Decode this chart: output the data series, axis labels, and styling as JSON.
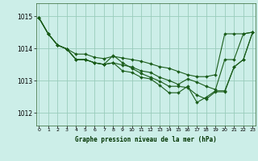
{
  "title": "Graphe pression niveau de la mer (hPa)",
  "bg_color": "#cceee8",
  "grid_color": "#99ccbb",
  "line_color": "#1a5c1a",
  "marker_color": "#1a5c1a",
  "ylim": [
    1011.6,
    1015.4
  ],
  "yticks": [
    1012,
    1013,
    1014,
    1015
  ],
  "xlim": [
    -0.3,
    23.3
  ],
  "xticks": [
    0,
    1,
    2,
    3,
    4,
    5,
    6,
    7,
    8,
    9,
    10,
    11,
    12,
    13,
    14,
    15,
    16,
    17,
    18,
    19,
    20,
    21,
    22,
    23
  ],
  "series": [
    [
      1014.95,
      1014.45,
      1014.1,
      1013.98,
      1013.82,
      1013.82,
      1013.72,
      1013.68,
      1013.75,
      1013.7,
      1013.65,
      1013.6,
      1013.52,
      1013.43,
      1013.38,
      1013.28,
      1013.18,
      1013.12,
      1013.12,
      1013.18,
      1014.45,
      1014.45,
      1014.45,
      1014.5
    ],
    [
      1014.95,
      1014.45,
      1014.1,
      1013.98,
      1013.65,
      1013.65,
      1013.55,
      1013.5,
      1013.55,
      1013.48,
      1013.42,
      1013.3,
      1013.25,
      1013.1,
      1013.0,
      1012.88,
      1013.05,
      1012.95,
      1012.82,
      1012.72,
      1013.65,
      1013.65,
      1014.45,
      1014.5
    ],
    [
      1014.95,
      1014.45,
      1014.1,
      1013.98,
      1013.65,
      1013.65,
      1013.55,
      1013.5,
      1013.78,
      1013.55,
      1013.38,
      1013.22,
      1013.1,
      1012.98,
      1012.82,
      1012.82,
      1012.78,
      1012.55,
      1012.42,
      1012.65,
      1012.65,
      1013.42,
      1013.65,
      1014.5
    ],
    [
      1014.95,
      1014.45,
      1014.1,
      1013.98,
      1013.65,
      1013.65,
      1013.55,
      1013.5,
      1013.55,
      1013.3,
      1013.25,
      1013.1,
      1013.05,
      1012.85,
      1012.62,
      1012.62,
      1012.82,
      1012.32,
      1012.48,
      1012.68,
      1012.68,
      1013.42,
      1013.65,
      1014.5
    ]
  ]
}
